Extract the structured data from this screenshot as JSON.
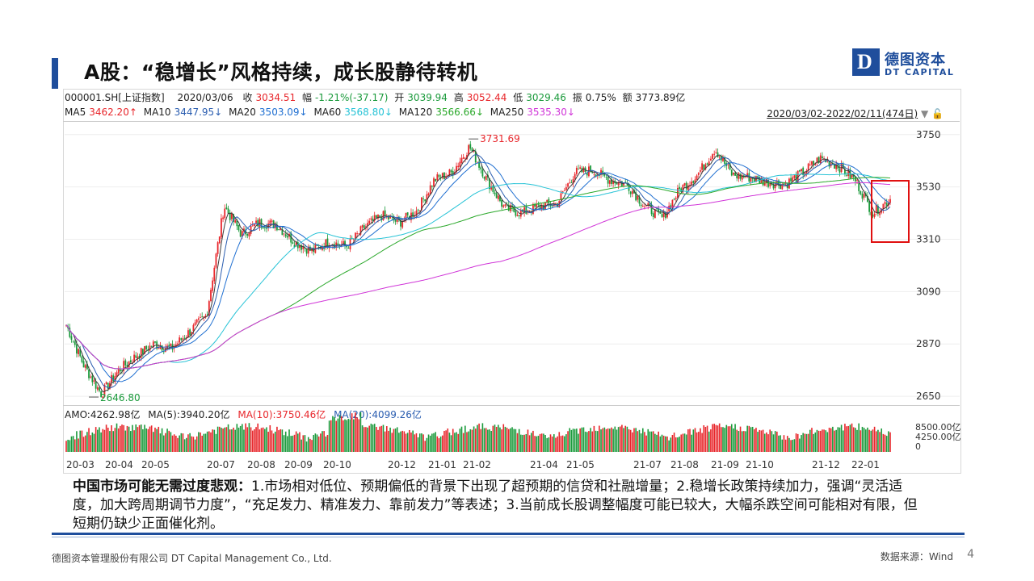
{
  "slide": {
    "title": "A股：“稳增长”风格持续，成长股静待转机",
    "logo_cn": "德图资本",
    "logo_en": "DT CAPITAL",
    "logo_mark": "D",
    "footer_left": "德图资本管理股份有限公司 DT Capital Management Co., Ltd.",
    "footer_right": "数据来源：Wind",
    "page_number": "4"
  },
  "quote": {
    "code": "000001.SH[上证指数]",
    "date": "2020/03/06",
    "close_label": "收",
    "close": "3034.51",
    "change_label": "幅",
    "change": "-1.21%(-37.17)",
    "open_label": "开",
    "open": "3039.94",
    "high_label": "高",
    "high": "3052.44",
    "low_label": "低",
    "low": "3029.46",
    "amp_label": "振",
    "amp": "0.75%",
    "amount_label": "额",
    "amount": "3773.89亿"
  },
  "ma": {
    "ma5_label": "MA5",
    "ma5": "3462.20↑",
    "ma10_label": "MA10",
    "ma10": "3447.95↓",
    "ma20_label": "MA20",
    "ma20": "3503.09↓",
    "ma60_label": "MA60",
    "ma60": "3568.80↓",
    "ma120_label": "MA120",
    "ma120": "3566.66↓",
    "ma250_label": "MA250",
    "ma250": "3535.30↓"
  },
  "range_text": "2020/03/02-2022/02/11(474日)",
  "amo": {
    "amo_label": "AMO:",
    "amo": "4262.98亿",
    "ma5_label": "MA(5):",
    "ma5": "3940.20亿",
    "ma10_label": "MA(10):",
    "ma10": "3750.46亿",
    "ma20_label": "MA(20):",
    "ma20": "4099.26亿"
  },
  "colors": {
    "up": "#e8262b",
    "down": "#1a9a3b",
    "ma5": "#3a3a3a",
    "ma10": "#2a5db0",
    "ma20": "#1f6fd1",
    "ma60": "#27c3d6",
    "ma120": "#2aa82a",
    "ma250": "#d035d8",
    "brand": "#1f4e9c",
    "highlight": "#e01010"
  },
  "chart_data": {
    "type": "candlestick",
    "title": "000001.SH[上证指数]",
    "y_ticks": [
      3750,
      3530,
      3310,
      3090,
      2870,
      2650
    ],
    "ylim": [
      2630,
      3790
    ],
    "x_ticks": [
      "20-03",
      "20-04",
      "20-05",
      "20-07",
      "20-08",
      "20-09",
      "20-10",
      "20-12",
      "21-01",
      "21-02",
      "21-04",
      "21-05",
      "21-07",
      "21-08",
      "21-09",
      "21-10",
      "21-12",
      "22-01"
    ],
    "annotations": [
      {
        "text": "3731.69",
        "date": "21-02",
        "value": 3731.69
      },
      {
        "text": "2646.80",
        "date": "20-03",
        "value": 2646.8
      }
    ],
    "volume_ticks": [
      "8500.00亿",
      "4250.00亿",
      "0"
    ],
    "close_series": [
      [
        "20-03",
        2950
      ],
      [
        "20-03b",
        2780
      ],
      [
        "20-03c",
        2660
      ],
      [
        "20-04",
        2760
      ],
      [
        "20-04b",
        2820
      ],
      [
        "20-05",
        2870
      ],
      [
        "20-05b",
        2850
      ],
      [
        "20-06",
        2920
      ],
      [
        "20-06b",
        2990
      ],
      [
        "20-07",
        3450
      ],
      [
        "20-07b",
        3330
      ],
      [
        "20-08",
        3380
      ],
      [
        "20-08b",
        3370
      ],
      [
        "20-09",
        3300
      ],
      [
        "20-09b",
        3260
      ],
      [
        "20-10",
        3300
      ],
      [
        "20-10b",
        3280
      ],
      [
        "20-11",
        3360
      ],
      [
        "20-11b",
        3410
      ],
      [
        "20-12",
        3380
      ],
      [
        "20-12b",
        3430
      ],
      [
        "21-01",
        3560
      ],
      [
        "21-01b",
        3590
      ],
      [
        "21-02",
        3700
      ],
      [
        "21-02b",
        3560
      ],
      [
        "21-03",
        3440
      ],
      [
        "21-03b",
        3420
      ],
      [
        "21-04",
        3450
      ],
      [
        "21-04b",
        3460
      ],
      [
        "21-05",
        3590
      ],
      [
        "21-05b",
        3600
      ],
      [
        "21-06",
        3560
      ],
      [
        "21-06b",
        3540
      ],
      [
        "21-07",
        3450
      ],
      [
        "21-07b",
        3400
      ],
      [
        "21-08",
        3520
      ],
      [
        "21-08b",
        3580
      ],
      [
        "21-09",
        3690
      ],
      [
        "21-09b",
        3580
      ],
      [
        "21-10",
        3570
      ],
      [
        "21-10b",
        3550
      ],
      [
        "21-11",
        3540
      ],
      [
        "21-11b",
        3590
      ],
      [
        "21-12",
        3650
      ],
      [
        "21-12b",
        3620
      ],
      [
        "22-01",
        3560
      ],
      [
        "22-01b",
        3420
      ],
      [
        "22-02",
        3480
      ]
    ]
  }
}
